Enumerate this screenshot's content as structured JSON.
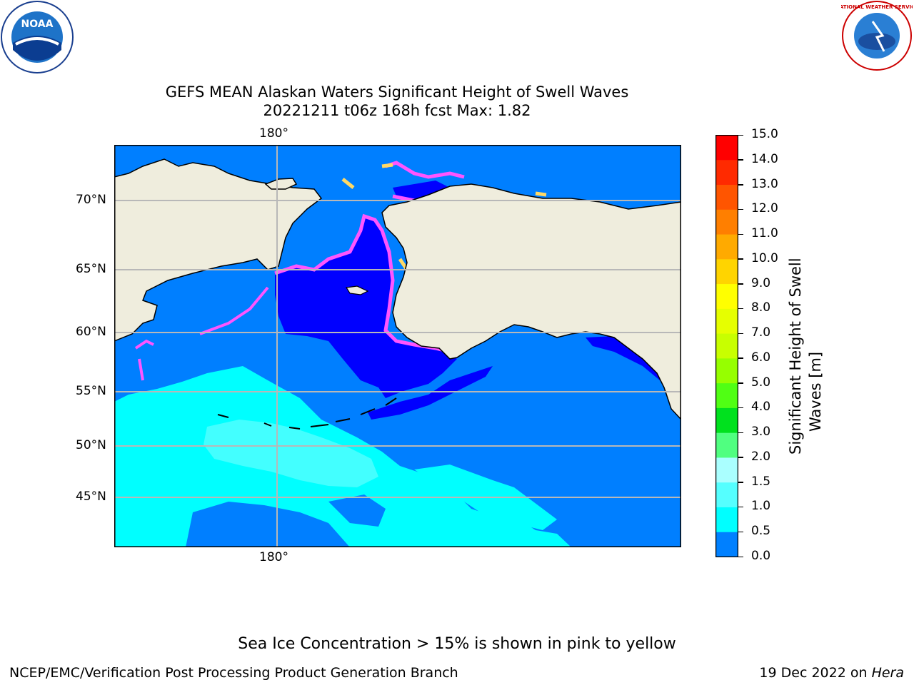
{
  "header": {
    "title_line1": "GEFS MEAN Alaskan Waters Significant Height of Swell Waves",
    "title_line2": "20221211 t06z 168h fcst   Max: 1.82",
    "logos": {
      "left": "NOAA",
      "right": "NATIONAL WEATHER SERVICE"
    }
  },
  "map": {
    "lon_label": "180°",
    "lat_labels": [
      "70°N",
      "65°N",
      "60°N",
      "55°N",
      "50°N",
      "45°N"
    ],
    "colors": {
      "land": "#efeddd",
      "ocean_deep": "#0000ff",
      "ocean_mid": "#007fff",
      "ocean_cyan": "#00ffff",
      "ocean_lightcyan": "#43ffff",
      "ice_pink": "#ff55ff",
      "ice_yellow": "#ffe066",
      "grid": "#b8b8b8"
    }
  },
  "colorbar": {
    "label_line1": "Significant Height of Swell",
    "label_line2": "Waves [m]",
    "ticks": [
      "15.0",
      "14.0",
      "13.0",
      "12.0",
      "11.0",
      "10.0",
      "9.0",
      "8.0",
      "7.0",
      "6.0",
      "5.0",
      "4.0",
      "3.0",
      "2.0",
      "1.5",
      "1.0",
      "0.5",
      "0.0"
    ],
    "bin_colors": [
      "#ff0000",
      "#ff2a00",
      "#ff5500",
      "#ff7f00",
      "#ffaa00",
      "#ffd400",
      "#ffff00",
      "#e6ff00",
      "#c8ff00",
      "#96ff00",
      "#50ff14",
      "#00e11e",
      "#50ff80",
      "#aaffff",
      "#55ffff",
      "#00ffff",
      "#0080ff",
      "#0000ff"
    ]
  },
  "notes": {
    "ice": "Sea Ice Concentration > 15% is shown in pink to yellow",
    "credit": "NCEP/EMC/Verification Post Processing Product Generation Branch",
    "date": "19 Dec 2022 on",
    "host": "Hera"
  }
}
